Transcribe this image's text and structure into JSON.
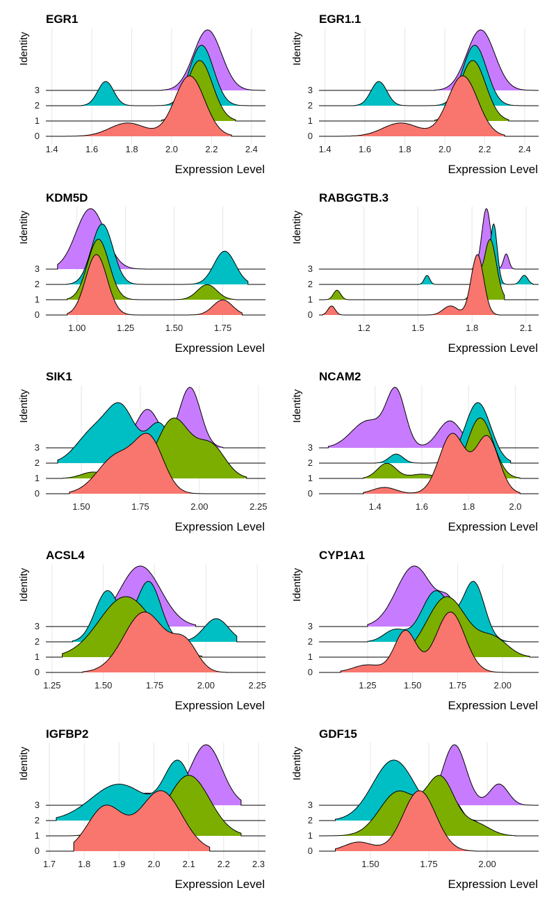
{
  "figure": {
    "y_axis_label": "Identity",
    "x_axis_label": "Expression Level",
    "identities": [
      "0",
      "1",
      "2",
      "3"
    ],
    "colors": {
      "0": "#F8766D",
      "1": "#7CAE00",
      "2": "#00BFC4",
      "3": "#C77CFF"
    }
  },
  "chart_data": [
    {
      "type": "area",
      "title": "EGR1",
      "xlabel": "Expression Level",
      "ylabel": "Identity",
      "xlim": [
        1.37,
        2.47
      ],
      "xticks": [
        1.4,
        1.6,
        1.8,
        2.0,
        2.2,
        2.4
      ],
      "xtick_labels": [
        "1.4",
        "1.6",
        "1.8",
        "2.0",
        "2.2",
        "2.4"
      ],
      "series": [
        {
          "name": "0",
          "range": [
            1.45,
            2.3
          ],
          "peaks": [
            [
              1.78,
              0.22,
              0.09
            ],
            [
              2.09,
              1.0,
              0.075
            ]
          ]
        },
        {
          "name": "1",
          "range": [
            1.95,
            2.32
          ],
          "peaks": [
            [
              2.14,
              1.0,
              0.065
            ]
          ]
        },
        {
          "name": "2",
          "range": [
            1.55,
            2.4
          ],
          "peaks": [
            [
              1.67,
              0.18,
              0.04
            ],
            [
              2.15,
              0.45,
              0.06
            ]
          ]
        },
        {
          "name": "3",
          "range": [
            1.95,
            2.45
          ],
          "peaks": [
            [
              2.18,
              1.0,
              0.07
            ]
          ]
        }
      ]
    },
    {
      "type": "area",
      "title": "EGR1.1",
      "xlabel": "Expression Level",
      "ylabel": "Identity",
      "xlim": [
        1.37,
        2.47
      ],
      "xticks": [
        1.4,
        1.6,
        1.8,
        2.0,
        2.2,
        2.4
      ],
      "xtick_labels": [
        "1.4",
        "1.6",
        "1.8",
        "2.0",
        "2.2",
        "2.4"
      ],
      "series": [
        {
          "name": "0",
          "range": [
            1.45,
            2.3
          ],
          "peaks": [
            [
              1.78,
              0.22,
              0.09
            ],
            [
              2.09,
              1.0,
              0.075
            ]
          ]
        },
        {
          "name": "1",
          "range": [
            1.95,
            2.32
          ],
          "peaks": [
            [
              2.14,
              1.0,
              0.065
            ]
          ]
        },
        {
          "name": "2",
          "range": [
            1.55,
            2.4
          ],
          "peaks": [
            [
              1.67,
              0.18,
              0.04
            ],
            [
              2.15,
              0.45,
              0.06
            ]
          ]
        },
        {
          "name": "3",
          "range": [
            1.95,
            2.45
          ],
          "peaks": [
            [
              2.18,
              1.0,
              0.07
            ]
          ]
        }
      ]
    },
    {
      "type": "area",
      "title": "KDM5D",
      "xlabel": "Expression Level",
      "ylabel": "Identity",
      "xlim": [
        0.84,
        1.97
      ],
      "xticks": [
        1.0,
        1.25,
        1.5,
        1.75
      ],
      "xtick_labels": [
        "1.00",
        "1.25",
        "1.50",
        "1.75"
      ],
      "series": [
        {
          "name": "0",
          "range": [
            0.95,
            1.85
          ],
          "peaks": [
            [
              1.1,
              1.0,
              0.055
            ],
            [
              1.75,
              0.25,
              0.05
            ]
          ]
        },
        {
          "name": "1",
          "range": [
            0.95,
            1.82
          ],
          "peaks": [
            [
              1.11,
              1.0,
              0.055
            ],
            [
              1.67,
              0.25,
              0.05
            ]
          ]
        },
        {
          "name": "2",
          "range": [
            0.95,
            1.88
          ],
          "peaks": [
            [
              1.13,
              1.0,
              0.055
            ],
            [
              1.76,
              0.55,
              0.055
            ]
          ]
        },
        {
          "name": "3",
          "range": [
            0.9,
            1.35
          ],
          "peaks": [
            [
              1.07,
              1.0,
              0.075
            ]
          ]
        }
      ]
    },
    {
      "type": "area",
      "title": "RABGGTB.3",
      "xlabel": "Expression Level",
      "ylabel": "Identity",
      "xlim": [
        0.95,
        2.17
      ],
      "xticks": [
        1.2,
        1.5,
        1.8,
        2.1
      ],
      "xtick_labels": [
        "1.2",
        "1.5",
        "1.8",
        "2.1"
      ],
      "series": [
        {
          "name": "0",
          "range": [
            0.97,
            1.95
          ],
          "peaks": [
            [
              1.02,
              0.15,
              0.02
            ],
            [
              1.68,
              0.15,
              0.04
            ],
            [
              1.83,
              1.0,
              0.035
            ]
          ]
        },
        {
          "name": "1",
          "range": [
            0.97,
            1.98
          ],
          "peaks": [
            [
              1.05,
              0.15,
              0.02
            ],
            [
              1.82,
              0.5,
              0.02
            ],
            [
              1.9,
              0.95,
              0.035
            ]
          ]
        },
        {
          "name": "2",
          "range": [
            1.5,
            2.14
          ],
          "peaks": [
            [
              1.55,
              0.15,
              0.015
            ],
            [
              1.84,
              0.4,
              0.015
            ],
            [
              1.92,
              1.0,
              0.02
            ],
            [
              2.09,
              0.15,
              0.02
            ]
          ]
        },
        {
          "name": "3",
          "range": [
            1.8,
            2.05
          ],
          "peaks": [
            [
              1.88,
              1.0,
              0.025
            ],
            [
              1.99,
              0.25,
              0.015
            ]
          ]
        }
      ]
    },
    {
      "type": "area",
      "title": "SIK1",
      "xlabel": "Expression Level",
      "ylabel": "Identity",
      "xlim": [
        1.35,
        2.28
      ],
      "xticks": [
        1.5,
        1.75,
        2.0,
        2.25
      ],
      "xtick_labels": [
        "1.50",
        "1.75",
        "2.00",
        "2.25"
      ],
      "series": [
        {
          "name": "0",
          "range": [
            1.45,
            2.08
          ],
          "peaks": [
            [
              1.65,
              0.55,
              0.08
            ],
            [
              1.79,
              0.75,
              0.06
            ]
          ]
        },
        {
          "name": "1",
          "range": [
            1.42,
            2.2
          ],
          "peaks": [
            [
              1.55,
              0.08,
              0.05
            ],
            [
              1.89,
              0.75,
              0.07
            ],
            [
              2.05,
              0.4,
              0.06
            ]
          ]
        },
        {
          "name": "2",
          "range": [
            1.4,
            1.95
          ],
          "peaks": [
            [
              1.55,
              0.35,
              0.07
            ],
            [
              1.67,
              0.6,
              0.06
            ],
            [
              1.83,
              0.45,
              0.05
            ]
          ]
        },
        {
          "name": "3",
          "range": [
            1.65,
            2.1
          ],
          "peaks": [
            [
              1.78,
              0.35,
              0.05
            ],
            [
              1.96,
              0.55,
              0.045
            ]
          ]
        }
      ]
    },
    {
      "type": "area",
      "title": "NCAM2",
      "xlabel": "Expression Level",
      "ylabel": "Identity",
      "xlim": [
        1.16,
        2.1
      ],
      "xticks": [
        1.4,
        1.6,
        1.8,
        2.0
      ],
      "xtick_labels": [
        "1.4",
        "1.6",
        "1.8",
        "2.0"
      ],
      "series": [
        {
          "name": "0",
          "range": [
            1.35,
            2.02
          ],
          "peaks": [
            [
              1.44,
              0.1,
              0.05
            ],
            [
              1.73,
              0.95,
              0.055
            ],
            [
              1.88,
              0.9,
              0.05
            ]
          ]
        },
        {
          "name": "1",
          "range": [
            1.35,
            2.02
          ],
          "peaks": [
            [
              1.45,
              0.25,
              0.04
            ],
            [
              1.6,
              0.07,
              0.05
            ],
            [
              1.85,
              1.0,
              0.055
            ]
          ]
        },
        {
          "name": "2",
          "range": [
            1.4,
            1.98
          ],
          "peaks": [
            [
              1.49,
              0.15,
              0.03
            ],
            [
              1.84,
              1.0,
              0.055
            ]
          ]
        },
        {
          "name": "3",
          "range": [
            1.2,
            1.85
          ],
          "peaks": [
            [
              1.37,
              0.25,
              0.07
            ],
            [
              1.49,
              0.5,
              0.04
            ],
            [
              1.72,
              0.25,
              0.05
            ]
          ]
        }
      ]
    },
    {
      "type": "area",
      "title": "ACSL4",
      "xlabel": "Expression Level",
      "ylabel": "Identity",
      "xlim": [
        1.22,
        2.29
      ],
      "xticks": [
        1.25,
        1.5,
        1.75,
        2.0,
        2.25
      ],
      "xtick_labels": [
        "1.25",
        "1.50",
        "1.75",
        "2.00",
        "2.25"
      ],
      "series": [
        {
          "name": "0",
          "range": [
            1.4,
            2.1
          ],
          "peaks": [
            [
              1.7,
              1.0,
              0.1
            ],
            [
              1.9,
              0.45,
              0.06
            ]
          ]
        },
        {
          "name": "1",
          "range": [
            1.3,
            1.98
          ],
          "peaks": [
            [
              1.61,
              0.9,
              0.13
            ]
          ]
        },
        {
          "name": "2",
          "range": [
            1.35,
            2.15
          ],
          "peaks": [
            [
              1.52,
              0.55,
              0.06
            ],
            [
              1.72,
              0.65,
              0.06
            ],
            [
              2.05,
              0.25,
              0.06
            ]
          ]
        },
        {
          "name": "3",
          "range": [
            1.45,
            1.95
          ],
          "peaks": [
            [
              1.68,
              0.95,
              0.1
            ]
          ]
        }
      ]
    },
    {
      "type": "area",
      "title": "CYP1A1",
      "xlabel": "Expression Level",
      "ylabel": "Identity",
      "xlim": [
        0.98,
        2.2
      ],
      "xticks": [
        1.25,
        1.5,
        1.75,
        2.0
      ],
      "xtick_labels": [
        "1.25",
        "1.50",
        "1.75",
        "2.00"
      ],
      "series": [
        {
          "name": "0",
          "range": [
            1.1,
            2.02
          ],
          "peaks": [
            [
              1.25,
              0.1,
              0.08
            ],
            [
              1.46,
              0.55,
              0.06
            ],
            [
              1.71,
              0.8,
              0.08
            ]
          ]
        },
        {
          "name": "1",
          "range": [
            1.4,
            2.15
          ],
          "peaks": [
            [
              1.69,
              1.0,
              0.11
            ],
            [
              1.95,
              0.3,
              0.08
            ]
          ]
        },
        {
          "name": "2",
          "range": [
            1.25,
            2.05
          ],
          "peaks": [
            [
              1.4,
              0.15,
              0.06
            ],
            [
              1.63,
              0.65,
              0.08
            ],
            [
              1.84,
              0.75,
              0.06
            ]
          ]
        },
        {
          "name": "3",
          "range": [
            1.25,
            1.85
          ],
          "peaks": [
            [
              1.51,
              1.0,
              0.1
            ],
            [
              1.7,
              0.35,
              0.05
            ]
          ]
        }
      ]
    },
    {
      "type": "area",
      "title": "IGFBP2",
      "xlabel": "Expression Level",
      "ylabel": "Identity",
      "xlim": [
        1.69,
        2.32
      ],
      "xticks": [
        1.7,
        1.8,
        1.9,
        2.0,
        2.1,
        2.2,
        2.3
      ],
      "xtick_labels": [
        "1.7",
        "1.8",
        "1.9",
        "2.0",
        "2.1",
        "2.2",
        "2.3"
      ],
      "series": [
        {
          "name": "0",
          "range": [
            1.77,
            2.16
          ],
          "peaks": [
            [
              1.86,
              0.55,
              0.05
            ],
            [
              2.02,
              0.75,
              0.06
            ]
          ]
        },
        {
          "name": "1",
          "range": [
            1.72,
            2.25
          ],
          "peaks": [
            [
              1.86,
              0.22,
              0.03
            ],
            [
              2.1,
              0.95,
              0.06
            ]
          ]
        },
        {
          "name": "2",
          "range": [
            1.72,
            2.15
          ],
          "peaks": [
            [
              1.9,
              0.45,
              0.08
            ],
            [
              2.07,
              0.7,
              0.04
            ]
          ]
        },
        {
          "name": "3",
          "range": [
            1.72,
            2.25
          ],
          "peaks": [
            [
              1.87,
              0.2,
              0.025
            ],
            [
              1.98,
              0.2,
              0.06
            ],
            [
              2.15,
              1.0,
              0.045
            ]
          ]
        }
      ]
    },
    {
      "type": "area",
      "title": "GDF15",
      "xlabel": "Expression Level",
      "ylabel": "Identity",
      "xlim": [
        1.28,
        2.22
      ],
      "xticks": [
        1.5,
        1.75,
        2.0
      ],
      "xtick_labels": [
        "1.50",
        "1.75",
        "2.00"
      ],
      "series": [
        {
          "name": "0",
          "range": [
            1.35,
            1.95
          ],
          "peaks": [
            [
              1.45,
              0.15,
              0.06
            ],
            [
              1.71,
              1.0,
              0.07
            ]
          ]
        },
        {
          "name": "1",
          "range": [
            1.3,
            2.12
          ],
          "peaks": [
            [
              1.62,
              0.55,
              0.08
            ],
            [
              1.8,
              0.7,
              0.06
            ],
            [
              1.95,
              0.15,
              0.06
            ]
          ]
        },
        {
          "name": "2",
          "range": [
            1.35,
            1.95
          ],
          "peaks": [
            [
              1.6,
              1.0,
              0.09
            ],
            [
              1.86,
              0.3,
              0.03
            ]
          ]
        },
        {
          "name": "3",
          "range": [
            1.7,
            2.2
          ],
          "peaks": [
            [
              1.86,
              1.0,
              0.05
            ],
            [
              2.05,
              0.35,
              0.04
            ]
          ]
        }
      ]
    }
  ]
}
